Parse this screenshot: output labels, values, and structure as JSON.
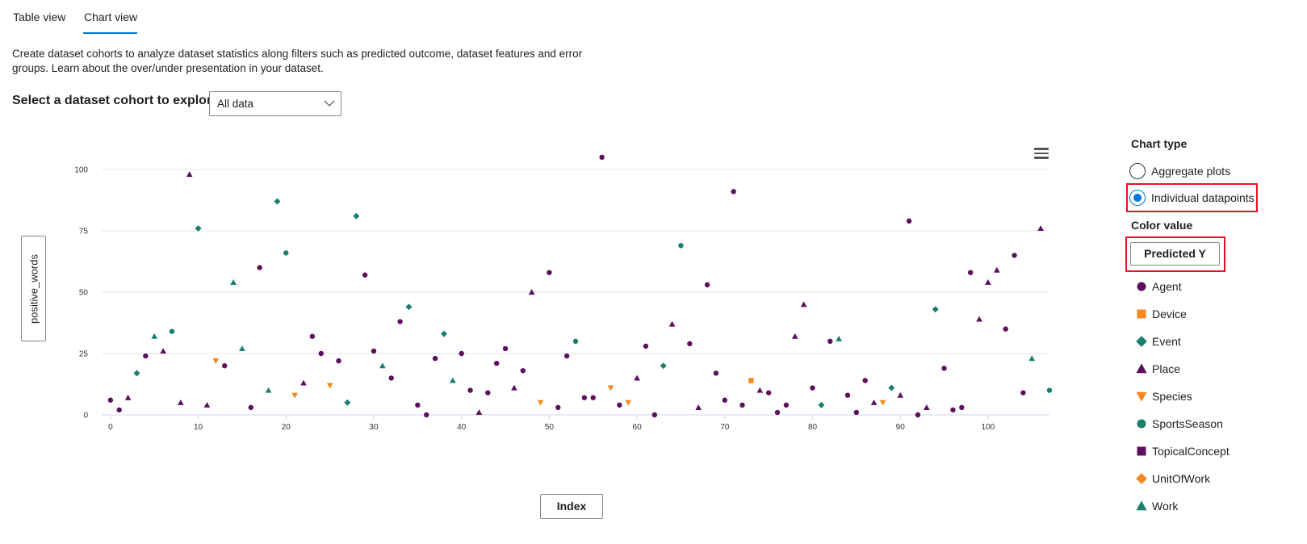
{
  "tabs": [
    {
      "label": "Table view",
      "active": false
    },
    {
      "label": "Chart view",
      "active": true
    }
  ],
  "description": "Create dataset cohorts to analyze dataset statistics along filters such as predicted outcome, dataset features and error groups. Learn about the over/under presentation in your dataset.",
  "cohort": {
    "label": "Select a dataset cohort to explore",
    "selected": "All data"
  },
  "axes": {
    "y_button": "positive_words",
    "x_button": "Index"
  },
  "sidebar": {
    "chart_type_title": "Chart type",
    "chart_types": [
      {
        "label": "Aggregate plots",
        "selected": false
      },
      {
        "label": "Individual datapoints",
        "selected": true
      }
    ],
    "color_value_title": "Color value",
    "color_value_button": "Predicted Y"
  },
  "legend": [
    {
      "label": "Agent",
      "shape": "circle",
      "color": "#5c0f5e"
    },
    {
      "label": "Device",
      "shape": "square",
      "color": "#f7881d"
    },
    {
      "label": "Event",
      "shape": "diamond",
      "color": "#1a7f6e"
    },
    {
      "label": "Place",
      "shape": "triangle-up",
      "color": "#5c0f5e"
    },
    {
      "label": "Species",
      "shape": "triangle-down",
      "color": "#f7881d"
    },
    {
      "label": "SportsSeason",
      "shape": "circle",
      "color": "#1a7f6e"
    },
    {
      "label": "TopicalConcept",
      "shape": "square",
      "color": "#5c0f5e"
    },
    {
      "label": "UnitOfWork",
      "shape": "diamond",
      "color": "#f7881d"
    },
    {
      "label": "Work",
      "shape": "triangle-up",
      "color": "#1a7f6e"
    }
  ],
  "chart_data": {
    "type": "scatter",
    "xlabel": "Index",
    "ylabel": "positive_words",
    "xticks": [
      0,
      10,
      20,
      30,
      40,
      50,
      60,
      70,
      80,
      90,
      100
    ],
    "yticks": [
      0,
      25,
      50,
      75,
      100
    ],
    "xlim": [
      -1,
      107
    ],
    "ylim": [
      0,
      100
    ],
    "grid": true,
    "legend_position": "right",
    "points": [
      [
        0,
        6,
        "Agent"
      ],
      [
        1,
        2,
        "Agent"
      ],
      [
        2,
        7,
        "Place"
      ],
      [
        3,
        17,
        "Event"
      ],
      [
        4,
        24,
        "Agent"
      ],
      [
        5,
        32,
        "Work"
      ],
      [
        6,
        26,
        "Place"
      ],
      [
        7,
        34,
        "SportsSeason"
      ],
      [
        8,
        5,
        "Place"
      ],
      [
        9,
        98,
        "Place"
      ],
      [
        10,
        76,
        "Event"
      ],
      [
        11,
        4,
        "Place"
      ],
      [
        12,
        22,
        "Species"
      ],
      [
        13,
        20,
        "Agent"
      ],
      [
        14,
        54,
        "Work"
      ],
      [
        15,
        27,
        "Work"
      ],
      [
        16,
        3,
        "Agent"
      ],
      [
        17,
        60,
        "Agent"
      ],
      [
        18,
        10,
        "Work"
      ],
      [
        19,
        87,
        "Event"
      ],
      [
        20,
        66,
        "SportsSeason"
      ],
      [
        21,
        8,
        "Species"
      ],
      [
        22,
        13,
        "Place"
      ],
      [
        23,
        32,
        "Agent"
      ],
      [
        24,
        25,
        "Agent"
      ],
      [
        25,
        12,
        "Species"
      ],
      [
        26,
        22,
        "Agent"
      ],
      [
        27,
        5,
        "Event"
      ],
      [
        28,
        81,
        "Event"
      ],
      [
        29,
        57,
        "Agent"
      ],
      [
        30,
        26,
        "Agent"
      ],
      [
        31,
        20,
        "Work"
      ],
      [
        32,
        15,
        "Agent"
      ],
      [
        33,
        38,
        "Agent"
      ],
      [
        34,
        44,
        "Event"
      ],
      [
        35,
        4,
        "Agent"
      ],
      [
        36,
        0,
        "Agent"
      ],
      [
        37,
        23,
        "Agent"
      ],
      [
        38,
        33,
        "Event"
      ],
      [
        39,
        14,
        "Work"
      ],
      [
        40,
        25,
        "Agent"
      ],
      [
        41,
        10,
        "Agent"
      ],
      [
        42,
        1,
        "Place"
      ],
      [
        43,
        9,
        "Agent"
      ],
      [
        44,
        21,
        "Agent"
      ],
      [
        45,
        27,
        "Agent"
      ],
      [
        46,
        11,
        "Place"
      ],
      [
        47,
        18,
        "Agent"
      ],
      [
        48,
        50,
        "Place"
      ],
      [
        49,
        5,
        "Species"
      ],
      [
        50,
        58,
        "Agent"
      ],
      [
        51,
        3,
        "Agent"
      ],
      [
        52,
        24,
        "Agent"
      ],
      [
        53,
        30,
        "SportsSeason"
      ],
      [
        54,
        7,
        "Agent"
      ],
      [
        55,
        7,
        "Agent"
      ],
      [
        56,
        105,
        "Agent"
      ],
      [
        57,
        11,
        "Species"
      ],
      [
        58,
        4,
        "Agent"
      ],
      [
        59,
        5,
        "Species"
      ],
      [
        60,
        15,
        "Place"
      ],
      [
        61,
        28,
        "Agent"
      ],
      [
        62,
        0,
        "Agent"
      ],
      [
        63,
        20,
        "Event"
      ],
      [
        64,
        37,
        "Place"
      ],
      [
        65,
        69,
        "SportsSeason"
      ],
      [
        66,
        29,
        "Agent"
      ],
      [
        67,
        3,
        "Place"
      ],
      [
        68,
        53,
        "Agent"
      ],
      [
        69,
        17,
        "Agent"
      ],
      [
        70,
        6,
        "Agent"
      ],
      [
        71,
        91,
        "Agent"
      ],
      [
        72,
        4,
        "Agent"
      ],
      [
        73,
        14,
        "Device"
      ],
      [
        74,
        10,
        "Place"
      ],
      [
        75,
        9,
        "Agent"
      ],
      [
        76,
        1,
        "Agent"
      ],
      [
        77,
        4,
        "Agent"
      ],
      [
        78,
        32,
        "Place"
      ],
      [
        79,
        45,
        "Place"
      ],
      [
        80,
        11,
        "Agent"
      ],
      [
        81,
        4,
        "Event"
      ],
      [
        82,
        30,
        "Agent"
      ],
      [
        83,
        31,
        "Work"
      ],
      [
        84,
        8,
        "Agent"
      ],
      [
        85,
        1,
        "Agent"
      ],
      [
        86,
        14,
        "Agent"
      ],
      [
        87,
        5,
        "Place"
      ],
      [
        88,
        5,
        "Species"
      ],
      [
        89,
        11,
        "Event"
      ],
      [
        90,
        8,
        "Place"
      ],
      [
        91,
        79,
        "Agent"
      ],
      [
        92,
        0,
        "Agent"
      ],
      [
        93,
        3,
        "Place"
      ],
      [
        94,
        43,
        "Event"
      ],
      [
        95,
        19,
        "Agent"
      ],
      [
        96,
        2,
        "Agent"
      ],
      [
        97,
        3,
        "Agent"
      ],
      [
        98,
        58,
        "Agent"
      ],
      [
        99,
        39,
        "Place"
      ],
      [
        100,
        54,
        "Place"
      ],
      [
        101,
        59,
        "Place"
      ],
      [
        102,
        35,
        "Agent"
      ],
      [
        103,
        65,
        "Agent"
      ],
      [
        104,
        9,
        "Agent"
      ],
      [
        105,
        23,
        "Work"
      ],
      [
        106,
        76,
        "Place"
      ],
      [
        107,
        10,
        "SportsSeason"
      ]
    ]
  }
}
